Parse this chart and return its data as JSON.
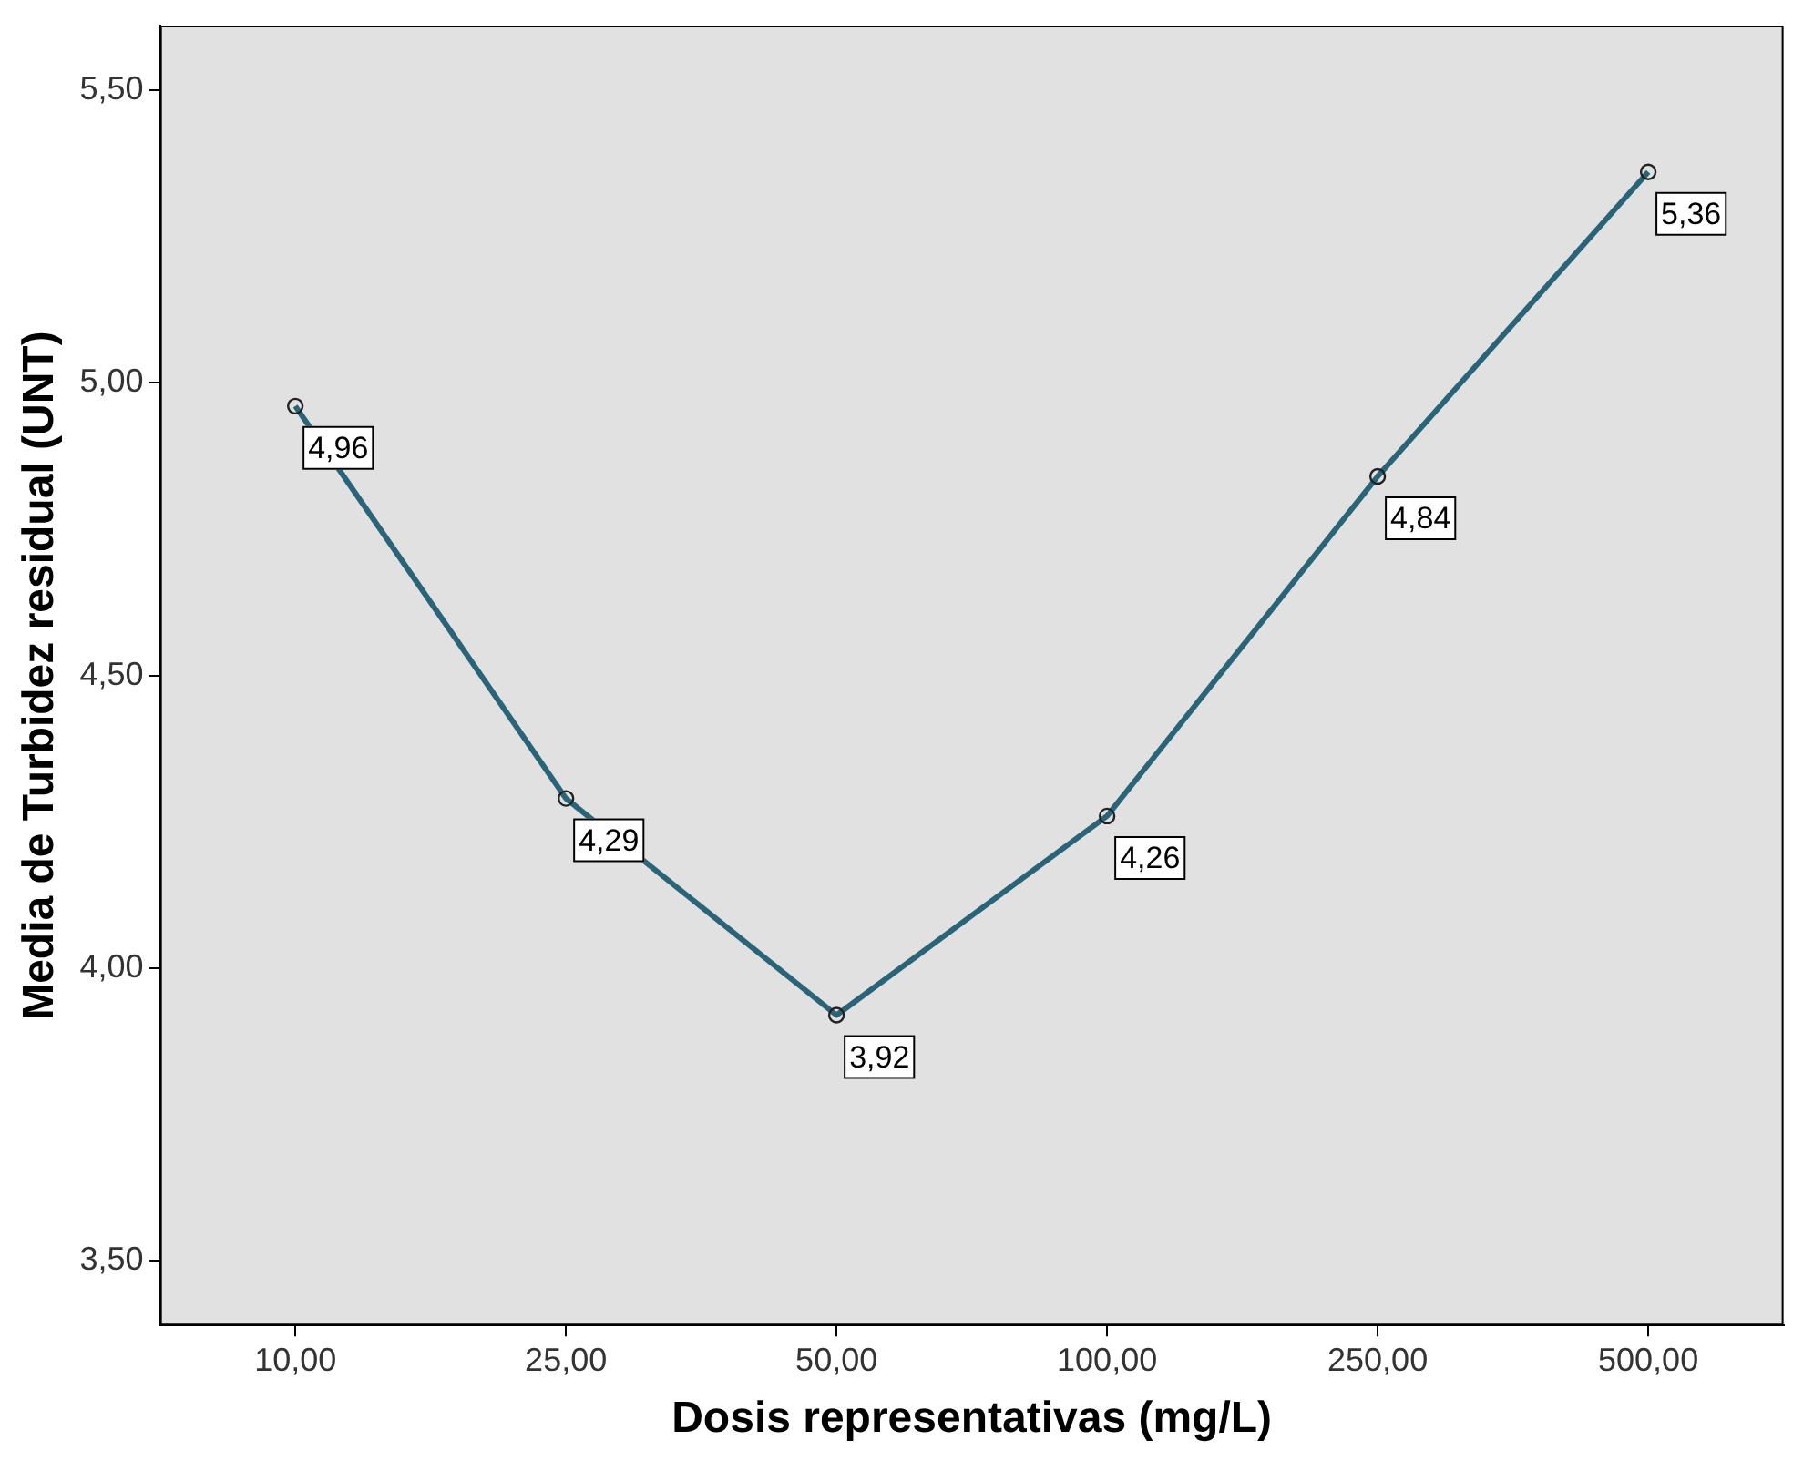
{
  "chart_data": {
    "type": "line",
    "xlabel": "Dosis representativas (mg/L)",
    "ylabel": "Media de Turbidez residual (UNT)",
    "categories": [
      "10,00",
      "25,00",
      "50,00",
      "100,00",
      "250,00",
      "500,00"
    ],
    "series": [
      {
        "color": "#2a6478",
        "values": [
          4.96,
          4.29,
          3.92,
          4.26,
          4.84,
          5.36
        ],
        "value_labels": [
          "4,96",
          "4,29",
          "3,92",
          "4,26",
          "4,84",
          "5,36"
        ]
      }
    ],
    "ylim": [
      3.39,
      5.61
    ],
    "yticks": [
      {
        "value": 3.5,
        "label": "3,50"
      },
      {
        "value": 4,
        "label": "4,00"
      },
      {
        "value": 4.5,
        "label": "4,50"
      },
      {
        "value": 5,
        "label": "5,00"
      },
      {
        "value": 5.5,
        "label": "5,50"
      }
    ],
    "grid": false,
    "legend": false,
    "marker": "circle",
    "line_style": "solid"
  }
}
